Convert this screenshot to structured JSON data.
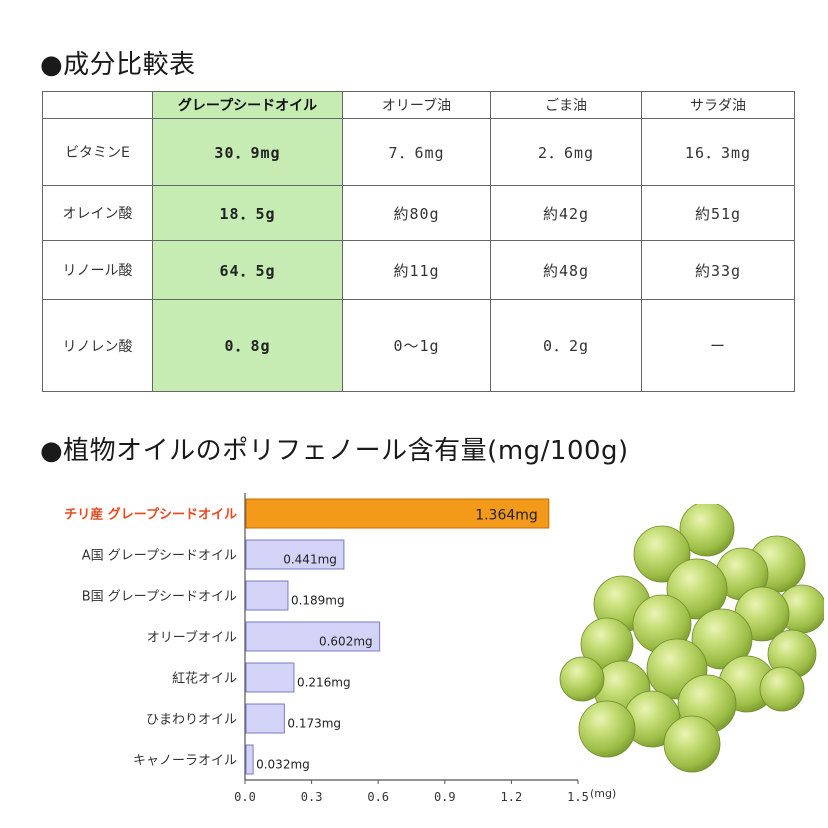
{
  "section1": {
    "title": "●成分比較表"
  },
  "table": {
    "headers": [
      "",
      "グレープシードオイル",
      "オリーブ油",
      "ごま油",
      "サラダ油"
    ],
    "rows": [
      {
        "label": "ビタミンE",
        "values": [
          "30．9mg",
          "7．6mg",
          "2．6mg",
          "16．3mg"
        ]
      },
      {
        "label": "オレイン酸",
        "values": [
          "18．5g",
          "約80g",
          "約42g",
          "約51g"
        ]
      },
      {
        "label": "リノール酸",
        "values": [
          "64．5g",
          "約11g",
          "約48g",
          "約33g"
        ]
      },
      {
        "label": "リノレン酸",
        "values": [
          "0．8g",
          "0〜1g",
          "0．2g",
          "ー"
        ]
      }
    ]
  },
  "section2": {
    "title": "●植物オイルのポリフェノール含有量(mg/100g)"
  },
  "chart_data": {
    "type": "bar",
    "orientation": "horizontal",
    "categories": [
      "チリ産 グレープシードオイル",
      "A国 グレープシードオイル",
      "B国 グレープシードオイル",
      "オリーブオイル",
      "紅花オイル",
      "ひまわりオイル",
      "キャノーラオイル"
    ],
    "values": [
      1.364,
      0.441,
      0.189,
      0.602,
      0.216,
      0.173,
      0.032
    ],
    "data_labels": [
      "1.364mg",
      "0.441mg",
      "0.189mg",
      "0.602mg",
      "0.216mg",
      "0.173mg",
      "0.032mg"
    ],
    "highlight_index": 0,
    "xlim": [
      0,
      1.5
    ],
    "xticks": [
      0.0,
      0.3,
      0.6,
      0.9,
      1.2,
      1.5
    ],
    "xtick_labels": [
      "0.0",
      "0.3",
      "0.6",
      "0.9",
      "1.2",
      "1.5"
    ],
    "xunit": "(mg)",
    "grid": false,
    "colors": {
      "highlight_bar": "#f39a1b",
      "highlight_border": "#c76d00",
      "bar": "#d3d3f7",
      "bar_border": "#7b7bc9",
      "highlight_label": "#e8491e",
      "label": "#333333"
    }
  },
  "image": {
    "icon": "green-grapes-image"
  }
}
